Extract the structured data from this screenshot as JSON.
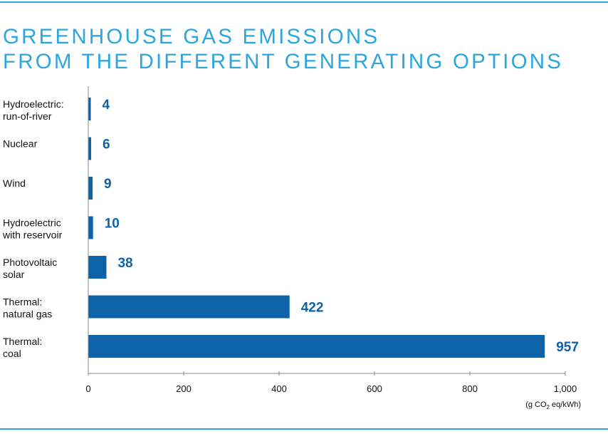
{
  "chart_data": {
    "type": "bar",
    "orientation": "horizontal",
    "title_lines": [
      "GREENHOUSE GAS EMISSIONS",
      "FROM THE DIFFERENT GENERATING OPTIONS"
    ],
    "categories": [
      [
        "Hydroelectric:",
        "run-of-river"
      ],
      [
        "Nuclear"
      ],
      [
        "Wind"
      ],
      [
        "Hydroelectric",
        "with reservoir"
      ],
      [
        "Photovoltaic",
        "solar"
      ],
      [
        "Thermal:",
        "natural gas"
      ],
      [
        "Thermal:",
        "coal"
      ]
    ],
    "values": [
      4,
      6,
      9,
      10,
      38,
      422,
      957
    ],
    "data_labels": [
      "4",
      "6",
      "9",
      "10",
      "38",
      "422",
      "957"
    ],
    "xlim": [
      0,
      1000
    ],
    "xticks": [
      0,
      200,
      400,
      600,
      800,
      1000
    ],
    "xtick_labels": [
      "0",
      "200",
      "400",
      "600",
      "800",
      "1,000"
    ],
    "xlabel_unit": {
      "prefix": "(g CO",
      "subscript": "2",
      "suffix": " eq/kWh)"
    },
    "grid": false,
    "colors": {
      "bar": "#0e62a8",
      "title": "#2ba6de",
      "rule": "#2ba6de",
      "value_label": "#0e62a8"
    }
  }
}
